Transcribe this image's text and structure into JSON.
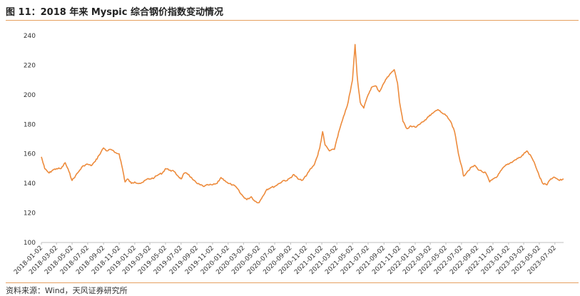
{
  "figure": {
    "title": "图 11：2018 年来 Myspic 综合钢价指数变动情况",
    "source": "资料来源：Wind，天风证券研究所"
  },
  "chart_data": {
    "type": "line",
    "title": "",
    "xlabel": "",
    "ylabel": "",
    "ylim": [
      100,
      240
    ],
    "yticks": [
      100,
      120,
      140,
      160,
      180,
      200,
      220,
      240
    ],
    "grid": false,
    "legend": "none",
    "line_color": "#ed8b3c",
    "xtick_labels": [
      "2018-01-02",
      "2018-03-02",
      "2018-05-02",
      "2018-07-02",
      "2018-09-02",
      "2018-11-02",
      "2019-01-02",
      "2019-03-02",
      "2019-05-02",
      "2019-07-02",
      "2019-09-02",
      "2019-11-02",
      "2020-01-02",
      "2020-03-02",
      "2020-05-02",
      "2020-07-02",
      "2020-09-02",
      "2020-11-02",
      "2021-01-02",
      "2021-03-02",
      "2021-05-02",
      "2021-07-02",
      "2021-09-02",
      "2021-11-02",
      "2022-01-02",
      "2022-03-02",
      "2022-05-02",
      "2022-07-02",
      "2022-09-02",
      "2022-11-02",
      "2023-01-02",
      "2023-03-02",
      "2023-05-02",
      "2023-07-02"
    ],
    "series": [
      {
        "points": [
          [
            "2018-01-02",
            158
          ],
          [
            "2018-01-15",
            150
          ],
          [
            "2018-02-01",
            147
          ],
          [
            "2018-02-15",
            149
          ],
          [
            "2018-03-02",
            150
          ],
          [
            "2018-03-20",
            150
          ],
          [
            "2018-04-05",
            154
          ],
          [
            "2018-04-20",
            148
          ],
          [
            "2018-05-02",
            142
          ],
          [
            "2018-05-15",
            145
          ],
          [
            "2018-06-01",
            149
          ],
          [
            "2018-06-15",
            152
          ],
          [
            "2018-07-02",
            153
          ],
          [
            "2018-07-15",
            152
          ],
          [
            "2018-08-01",
            155
          ],
          [
            "2018-08-15",
            159
          ],
          [
            "2018-09-02",
            164
          ],
          [
            "2018-09-15",
            162
          ],
          [
            "2018-10-01",
            163
          ],
          [
            "2018-10-15",
            161
          ],
          [
            "2018-11-02",
            160
          ],
          [
            "2018-11-15",
            150
          ],
          [
            "2018-11-25",
            141
          ],
          [
            "2018-12-05",
            143
          ],
          [
            "2018-12-20",
            140
          ],
          [
            "2019-01-02",
            141
          ],
          [
            "2019-01-20",
            140
          ],
          [
            "2019-02-05",
            141
          ],
          [
            "2019-02-20",
            143
          ],
          [
            "2019-03-02",
            143
          ],
          [
            "2019-03-20",
            144
          ],
          [
            "2019-04-05",
            146
          ],
          [
            "2019-04-20",
            147
          ],
          [
            "2019-05-02",
            150
          ],
          [
            "2019-05-20",
            149
          ],
          [
            "2019-06-05",
            148
          ],
          [
            "2019-06-20",
            145
          ],
          [
            "2019-07-02",
            143
          ],
          [
            "2019-07-15",
            147
          ],
          [
            "2019-08-01",
            146
          ],
          [
            "2019-08-15",
            143
          ],
          [
            "2019-09-02",
            140
          ],
          [
            "2019-09-15",
            139
          ],
          [
            "2019-10-01",
            138
          ],
          [
            "2019-10-15",
            139
          ],
          [
            "2019-11-02",
            139
          ],
          [
            "2019-11-20",
            140
          ],
          [
            "2019-12-05",
            144
          ],
          [
            "2019-12-20",
            142
          ],
          [
            "2020-01-02",
            140
          ],
          [
            "2020-01-20",
            139
          ],
          [
            "2020-02-05",
            137
          ],
          [
            "2020-02-20",
            133
          ],
          [
            "2020-03-02",
            131
          ],
          [
            "2020-03-15",
            129
          ],
          [
            "2020-04-01",
            131
          ],
          [
            "2020-04-15",
            128
          ],
          [
            "2020-05-02",
            127
          ],
          [
            "2020-05-15",
            131
          ],
          [
            "2020-06-01",
            136
          ],
          [
            "2020-06-15",
            137
          ],
          [
            "2020-07-02",
            138
          ],
          [
            "2020-07-20",
            140
          ],
          [
            "2020-08-05",
            142
          ],
          [
            "2020-08-20",
            142
          ],
          [
            "2020-09-02",
            144
          ],
          [
            "2020-09-15",
            146
          ],
          [
            "2020-10-01",
            143
          ],
          [
            "2020-10-15",
            142
          ],
          [
            "2020-11-02",
            145
          ],
          [
            "2020-11-15",
            149
          ],
          [
            "2020-12-01",
            152
          ],
          [
            "2020-12-15",
            158
          ],
          [
            "2020-12-25",
            164
          ],
          [
            "2021-01-05",
            175
          ],
          [
            "2021-01-15",
            166
          ],
          [
            "2021-02-01",
            162
          ],
          [
            "2021-02-20",
            163
          ],
          [
            "2021-03-02",
            170
          ],
          [
            "2021-03-15",
            178
          ],
          [
            "2021-04-01",
            187
          ],
          [
            "2021-04-15",
            195
          ],
          [
            "2021-05-02",
            210
          ],
          [
            "2021-05-12",
            234
          ],
          [
            "2021-05-20",
            213
          ],
          [
            "2021-06-01",
            195
          ],
          [
            "2021-06-15",
            191
          ],
          [
            "2021-07-02",
            200
          ],
          [
            "2021-07-15",
            205
          ],
          [
            "2021-08-01",
            206
          ],
          [
            "2021-08-15",
            202
          ],
          [
            "2021-09-02",
            208
          ],
          [
            "2021-09-15",
            212
          ],
          [
            "2021-10-01",
            215
          ],
          [
            "2021-10-12",
            217
          ],
          [
            "2021-10-25",
            208
          ],
          [
            "2021-11-02",
            195
          ],
          [
            "2021-11-15",
            182
          ],
          [
            "2021-12-01",
            177
          ],
          [
            "2021-12-15",
            179
          ],
          [
            "2022-01-02",
            178
          ],
          [
            "2022-01-20",
            180
          ],
          [
            "2022-02-05",
            182
          ],
          [
            "2022-02-20",
            185
          ],
          [
            "2022-03-02",
            186
          ],
          [
            "2022-03-15",
            188
          ],
          [
            "2022-04-01",
            190
          ],
          [
            "2022-04-15",
            188
          ],
          [
            "2022-05-02",
            186
          ],
          [
            "2022-05-20",
            182
          ],
          [
            "2022-06-05",
            175
          ],
          [
            "2022-06-20",
            160
          ],
          [
            "2022-07-02",
            152
          ],
          [
            "2022-07-10",
            145
          ],
          [
            "2022-07-25",
            148
          ],
          [
            "2022-08-10",
            151
          ],
          [
            "2022-08-25",
            152
          ],
          [
            "2022-09-02",
            150
          ],
          [
            "2022-09-20",
            148
          ],
          [
            "2022-10-05",
            147
          ],
          [
            "2022-10-20",
            141
          ],
          [
            "2022-11-02",
            143
          ],
          [
            "2022-11-20",
            145
          ],
          [
            "2022-12-05",
            149
          ],
          [
            "2022-12-20",
            152
          ],
          [
            "2023-01-02",
            153
          ],
          [
            "2023-01-20",
            155
          ],
          [
            "2023-02-05",
            157
          ],
          [
            "2023-02-20",
            158
          ],
          [
            "2023-03-02",
            160
          ],
          [
            "2023-03-15",
            162
          ],
          [
            "2023-04-01",
            158
          ],
          [
            "2023-04-15",
            153
          ],
          [
            "2023-05-02",
            145
          ],
          [
            "2023-05-15",
            140
          ],
          [
            "2023-06-01",
            139
          ],
          [
            "2023-06-15",
            143
          ],
          [
            "2023-07-02",
            144
          ],
          [
            "2023-07-20",
            142
          ],
          [
            "2023-08-05",
            143
          ]
        ]
      }
    ]
  }
}
